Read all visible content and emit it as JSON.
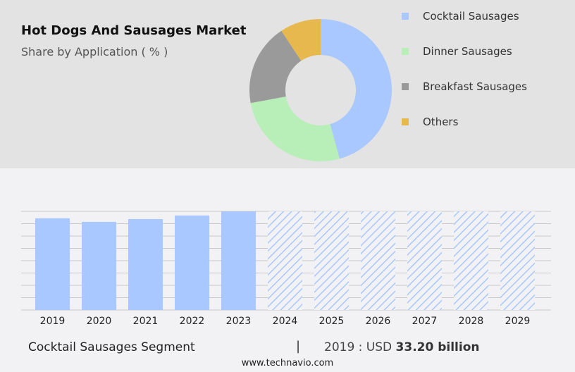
{
  "header": {
    "title": "Hot Dogs And Sausages Market",
    "subtitle": "Share by Application ( % )"
  },
  "chart_data": [
    {
      "type": "pie",
      "variant": "donut",
      "legend_position": "right",
      "categories": [
        "Cocktail Sausages",
        "Dinner Sausages",
        "Breakfast Sausages",
        "Others"
      ],
      "values": [
        45.7,
        26.4,
        18.6,
        9.3
      ],
      "colors": [
        "#a8c8ff",
        "#b8efb8",
        "#9a9a9a",
        "#e6b84e"
      ]
    },
    {
      "type": "bar",
      "categories": [
        "2019",
        "2020",
        "2021",
        "2022",
        "2023",
        "2024",
        "2025",
        "2026",
        "2027",
        "2028",
        "2029"
      ],
      "values": [
        33.2,
        31.9,
        32.9,
        34.2,
        35.7,
        null,
        null,
        null,
        null,
        null,
        null
      ],
      "forecast_years": [
        "2024",
        "2025",
        "2026",
        "2027",
        "2028",
        "2029"
      ],
      "color": "#a8c8ff",
      "grid": true
    }
  ],
  "footer": {
    "segment": "Cocktail Sausages Segment",
    "separator": "|",
    "year_label": "2019 : USD",
    "value": "33.20 billion",
    "url": "www.technavio.com"
  }
}
